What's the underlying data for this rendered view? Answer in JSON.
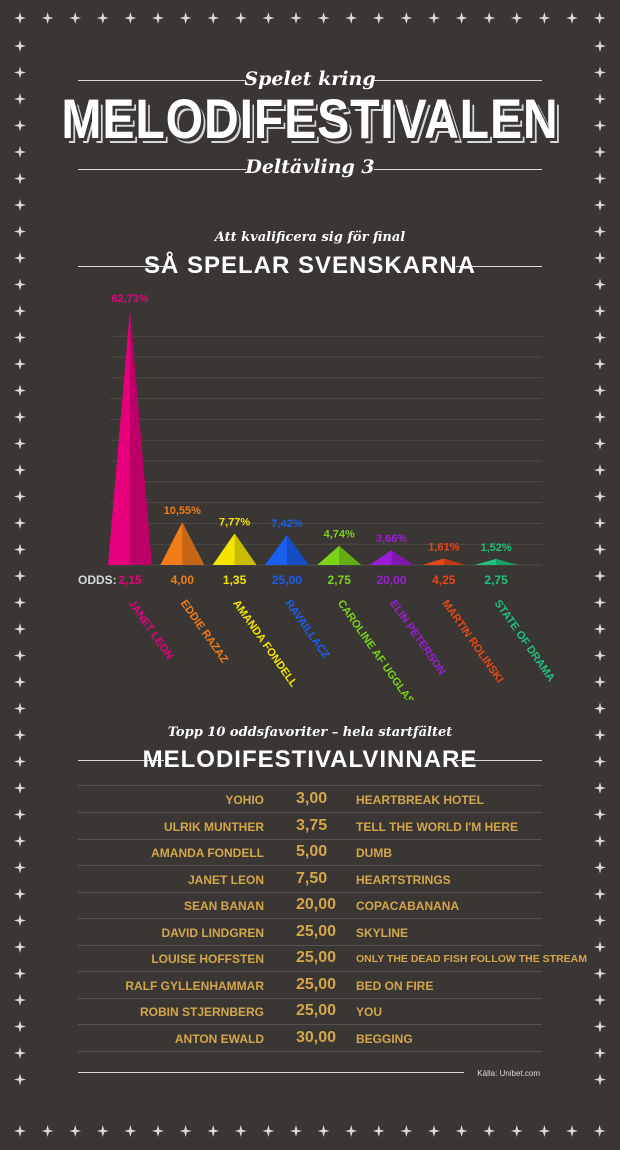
{
  "header": {
    "kicker": "Spelet kring",
    "title": "MELODIFESTIVALEN",
    "subtitle": "Deltävling 3"
  },
  "section1": {
    "kicker": "Att kvalificera sig för final",
    "title": "SÅ SPELAR SVENSKARNA",
    "odds_label": "ODDS:"
  },
  "chart_data": {
    "type": "bar",
    "title": "SÅ SPELAR SVENSKARNA",
    "ylim": [
      0,
      70
    ],
    "grid": true,
    "categories": [
      "JANET LEON",
      "EDDIE RAZAZ",
      "AMANDA FONDELL",
      "RAVAILLACZ",
      "CAROLINE AF UGGLAS",
      "ELIN PETERSON",
      "MARTIN ROLINSKI",
      "STATE OF DRAMA"
    ],
    "values": [
      62.73,
      10.55,
      7.77,
      7.42,
      4.74,
      3.66,
      1.61,
      1.52
    ],
    "value_labels": [
      "62,73%",
      "10,55%",
      "7,77%",
      "7,42%",
      "4,74%",
      "3,66%",
      "1,61%",
      "1,52%"
    ],
    "odds": [
      "2,15",
      "4,00",
      "1,35",
      "25,00",
      "2,75",
      "20,00",
      "4,25",
      "2,75"
    ],
    "colors": [
      "#e6007e",
      "#f07d1a",
      "#f4e400",
      "#1a5ff0",
      "#7ad318",
      "#9b1ed6",
      "#e8471a",
      "#1ec27a"
    ]
  },
  "section2": {
    "kicker": "Topp 10 oddsfavoriter – hela startfältet",
    "title": "MELODIFESTIVALVINNARE",
    "rows": [
      {
        "artist": "YOHIO",
        "odds": "3,00",
        "song": "HEARTBREAK HOTEL"
      },
      {
        "artist": "ULRIK MUNTHER",
        "odds": "3,75",
        "song": "TELL THE WORLD I'M HERE"
      },
      {
        "artist": "AMANDA FONDELL",
        "odds": "5,00",
        "song": "DUMB"
      },
      {
        "artist": "JANET LEON",
        "odds": "7,50",
        "song": "HEARTSTRINGS"
      },
      {
        "artist": "SEAN BANAN",
        "odds": "20,00",
        "song": "COPACABANANA"
      },
      {
        "artist": "DAVID LINDGREN",
        "odds": "25,00",
        "song": "SKYLINE"
      },
      {
        "artist": "LOUISE HOFFSTEN",
        "odds": "25,00",
        "song": "ONLY THE DEAD FISH FOLLOW THE STREAM"
      },
      {
        "artist": "RALF GYLLENHAMMAR",
        "odds": "25,00",
        "song": "BED ON FIRE"
      },
      {
        "artist": "ROBIN STJERNBERG",
        "odds": "25,00",
        "song": "YOU"
      },
      {
        "artist": "ANTON EWALD",
        "odds": "30,00",
        "song": "BEGGING"
      }
    ]
  },
  "footer": {
    "source": "Källa: Unibet.com"
  }
}
